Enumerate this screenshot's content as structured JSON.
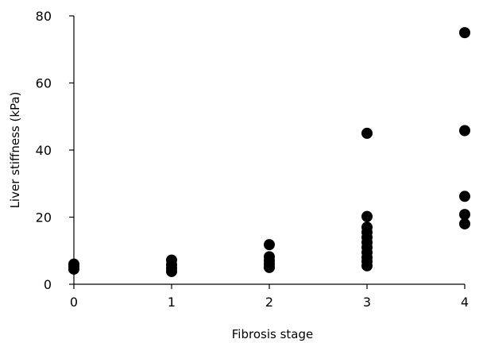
{
  "chart_data": {
    "type": "scatter",
    "title": "",
    "xlabel": "Fibrosis stage",
    "ylabel": "Liver stiffness (kPa)",
    "xlim": [
      0,
      4
    ],
    "ylim": [
      0,
      80
    ],
    "x_ticks": [
      "0",
      "1",
      "2",
      "3",
      "4"
    ],
    "y_ticks": [
      "0",
      "20",
      "40",
      "60",
      "80"
    ],
    "grid": false,
    "legend": "none",
    "point_color": "#000000",
    "series": [
      {
        "points": [
          {
            "x": 0,
            "y": 4.5
          },
          {
            "x": 0,
            "y": 5.3
          },
          {
            "x": 0,
            "y": 6.0
          },
          {
            "x": 1,
            "y": 3.8
          },
          {
            "x": 1,
            "y": 4.8
          },
          {
            "x": 1,
            "y": 5.8
          },
          {
            "x": 1,
            "y": 7.2
          },
          {
            "x": 2,
            "y": 5.0
          },
          {
            "x": 2,
            "y": 6.0
          },
          {
            "x": 2,
            "y": 7.0
          },
          {
            "x": 2,
            "y": 8.2
          },
          {
            "x": 2,
            "y": 11.8
          },
          {
            "x": 3,
            "y": 5.5
          },
          {
            "x": 3,
            "y": 6.8
          },
          {
            "x": 3,
            "y": 8.0
          },
          {
            "x": 3,
            "y": 9.5
          },
          {
            "x": 3,
            "y": 11.0
          },
          {
            "x": 3,
            "y": 12.5
          },
          {
            "x": 3,
            "y": 14.0
          },
          {
            "x": 3,
            "y": 15.5
          },
          {
            "x": 3,
            "y": 17.0
          },
          {
            "x": 3,
            "y": 20.2
          },
          {
            "x": 3,
            "y": 45.0
          },
          {
            "x": 4,
            "y": 18.0
          },
          {
            "x": 4,
            "y": 20.8
          },
          {
            "x": 4,
            "y": 26.2
          },
          {
            "x": 4,
            "y": 45.8
          },
          {
            "x": 4,
            "y": 75.0
          }
        ]
      }
    ]
  }
}
